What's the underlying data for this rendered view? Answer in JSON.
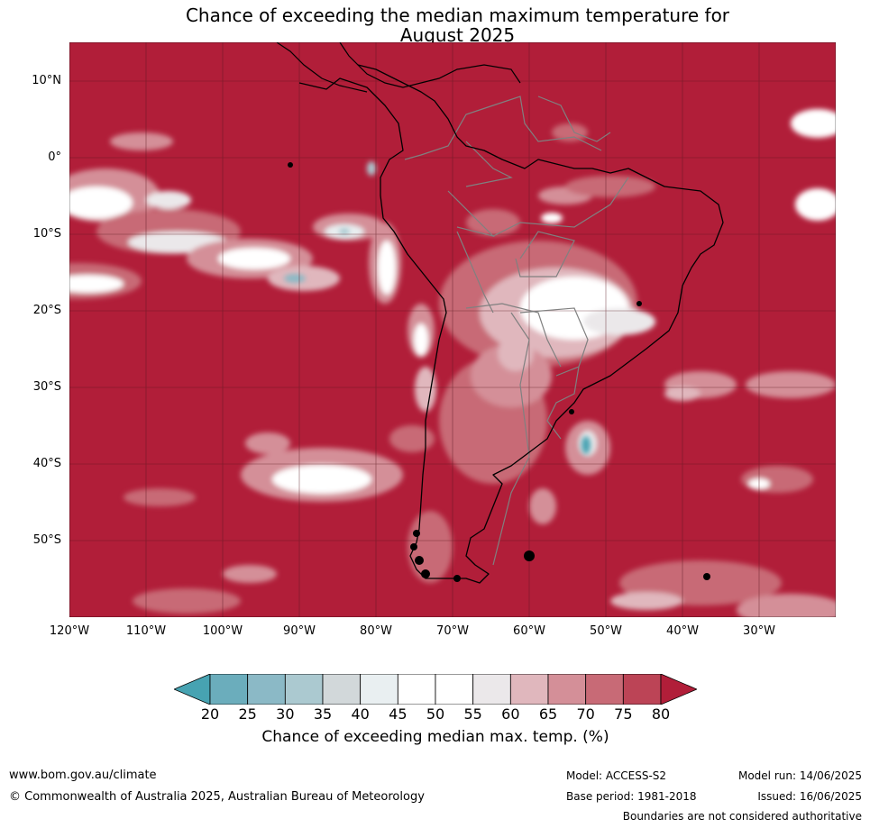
{
  "header": {
    "title_line1": "Chance of exceeding the median maximum temperature for",
    "title_line2": "August 2025"
  },
  "map": {
    "lat_labels": [
      "10°N",
      "0°",
      "10°S",
      "20°S",
      "30°S",
      "40°S",
      "50°S"
    ],
    "lon_labels": [
      "120°W",
      "110°W",
      "100°W",
      "90°W",
      "80°W",
      "70°W",
      "60°W",
      "50°W",
      "40°W",
      "30°W"
    ],
    "background_color": "#b11e39",
    "extent": {
      "lon_min": -120,
      "lon_max": -20,
      "lat_min": -60,
      "lat_max": 15
    }
  },
  "colorbar": {
    "ticks": [
      "20",
      "25",
      "30",
      "35",
      "40",
      "45",
      "50",
      "55",
      "60",
      "65",
      "70",
      "75",
      "80"
    ],
    "colors": [
      "#47a3b2",
      "#6badbc",
      "#8bb9c6",
      "#abc9d0",
      "#d2d8da",
      "#e9eff1",
      "#ffffff",
      "#ffffff",
      "#ebe8ea",
      "#e0b7bd",
      "#d48f98",
      "#c86a76",
      "#bc4456",
      "#b11e39"
    ],
    "label": "Chance of exceeding median max. temp. (%)"
  },
  "footer": {
    "website": "www.bom.gov.au/climate",
    "copyright": "© Commonwealth of Australia 2025, Australian Bureau of Meteorology",
    "model": "Model: ACCESS-S2",
    "base_period": "Base period: 1981-2018",
    "model_run": "Model run: 14/06/2025",
    "issued": "Issued: 16/06/2025",
    "disclaimer": "Boundaries are not considered authoritative"
  }
}
